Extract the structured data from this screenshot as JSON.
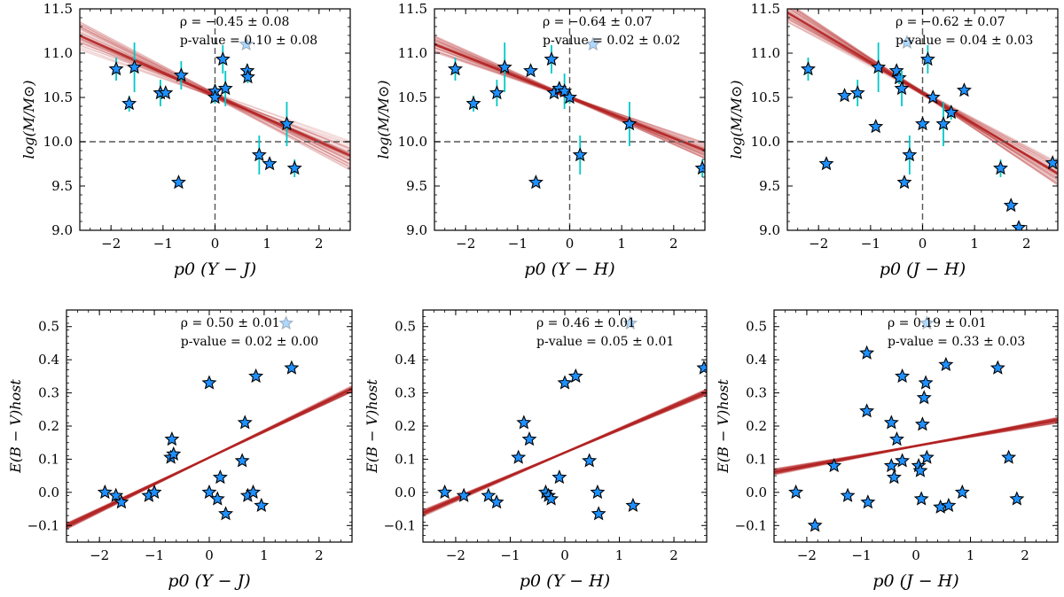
{
  "colors": {
    "fit": "#b22222",
    "star_fill": "#1e90ff",
    "star_edge": "#000000",
    "errorbar": "#00c8c8",
    "refline": "#555555"
  },
  "chart_data": [
    {
      "type": "scatter",
      "xlabel": "p0 (Y − J)",
      "ylabel": "log(M/M⊙)",
      "xlim": [
        -2.6,
        2.6
      ],
      "ylim": [
        9.0,
        11.5
      ],
      "xticks": [
        -2,
        -1,
        0,
        1,
        2
      ],
      "xtick_labels": [
        "−2",
        "−1",
        "0",
        "1",
        "2"
      ],
      "yticks": [
        9.0,
        9.5,
        10.0,
        10.5,
        11.0,
        11.5
      ],
      "ytick_labels": [
        "9.0",
        "9.5",
        "10.0",
        "10.5",
        "11.0",
        "11.5"
      ],
      "hline": 10.0,
      "vline": 0,
      "annotation_rho": "ρ = −0.45 ± 0.08",
      "annotation_p": "p-value = 0.10 ± 0.08",
      "fit": {
        "slope": -0.26,
        "intercept": 10.52,
        "spread": 0.1
      },
      "points": [
        {
          "x": -1.9,
          "y": 10.82,
          "err": 0.13
        },
        {
          "x": -1.65,
          "y": 10.43,
          "err": 0.09
        },
        {
          "x": -1.55,
          "y": 10.84,
          "err": 0.28
        },
        {
          "x": -1.05,
          "y": 10.55,
          "err": 0.15
        },
        {
          "x": -0.95,
          "y": 10.55,
          "err": 0
        },
        {
          "x": -0.7,
          "y": 9.54,
          "err": 0
        },
        {
          "x": -0.65,
          "y": 10.75,
          "err": 0.16
        },
        {
          "x": 0.0,
          "y": 10.57,
          "err": 0.08
        },
        {
          "x": 0.0,
          "y": 10.5,
          "err": 0.07
        },
        {
          "x": 0.15,
          "y": 10.93,
          "err": 0.16
        },
        {
          "x": 0.2,
          "y": 10.6,
          "err": 0.2
        },
        {
          "x": 0.62,
          "y": 10.8,
          "err": 0.08
        },
        {
          "x": 0.63,
          "y": 10.73,
          "err": 0.07
        },
        {
          "x": 0.85,
          "y": 9.85,
          "err": 0.22
        },
        {
          "x": 1.05,
          "y": 9.75,
          "err": 0
        },
        {
          "x": 1.38,
          "y": 10.2,
          "err": 0.25
        },
        {
          "x": 1.53,
          "y": 9.7,
          "err": 0.1
        },
        {
          "x": 0.6,
          "y": 11.1,
          "err": 0,
          "faded": true
        }
      ]
    },
    {
      "type": "scatter",
      "xlabel": "p0 (Y − H)",
      "ylabel": "log(M/M⊙)",
      "xlim": [
        -2.6,
        2.6
      ],
      "ylim": [
        9.0,
        11.5
      ],
      "xticks": [
        -2,
        -1,
        0,
        1,
        2
      ],
      "xtick_labels": [
        "−2",
        "−1",
        "0",
        "1",
        "2"
      ],
      "yticks": [
        9.0,
        9.5,
        10.0,
        10.5,
        11.0,
        11.5
      ],
      "ytick_labels": [
        "9.0",
        "9.5",
        "10.0",
        "10.5",
        "11.0",
        "11.5"
      ],
      "hline": 10.0,
      "vline": 0,
      "annotation_rho": "ρ = −0.64 ± 0.07",
      "annotation_p": "p-value = 0.02 ± 0.02",
      "fit": {
        "slope": -0.23,
        "intercept": 10.5,
        "spread": 0.06
      },
      "points": [
        {
          "x": -2.2,
          "y": 10.82,
          "err": 0.13
        },
        {
          "x": -1.85,
          "y": 10.43,
          "err": 0.09
        },
        {
          "x": -1.4,
          "y": 10.55,
          "err": 0.15
        },
        {
          "x": -1.25,
          "y": 10.84,
          "err": 0.28
        },
        {
          "x": -0.75,
          "y": 10.8,
          "err": 0
        },
        {
          "x": -0.65,
          "y": 9.54,
          "err": 0
        },
        {
          "x": -0.35,
          "y": 10.93,
          "err": 0.16
        },
        {
          "x": -0.3,
          "y": 10.55,
          "err": 0
        },
        {
          "x": -0.2,
          "y": 10.6,
          "err": 0
        },
        {
          "x": -0.1,
          "y": 10.57,
          "err": 0.2
        },
        {
          "x": 0.0,
          "y": 10.5,
          "err": 0.07
        },
        {
          "x": 0.2,
          "y": 9.85,
          "err": 0.22
        },
        {
          "x": 1.15,
          "y": 10.2,
          "err": 0.25
        },
        {
          "x": 2.55,
          "y": 9.7,
          "err": 0.1
        },
        {
          "x": 0.45,
          "y": 11.1,
          "err": 0,
          "faded": true
        }
      ]
    },
    {
      "type": "scatter",
      "xlabel": "p0 (J − H)",
      "ylabel": "log(M/M⊙)",
      "xlim": [
        -2.6,
        2.6
      ],
      "ylim": [
        9.0,
        11.5
      ],
      "xticks": [
        -2,
        -1,
        0,
        1,
        2
      ],
      "xtick_labels": [
        "−2",
        "−1",
        "0",
        "1",
        "2"
      ],
      "yticks": [
        9.0,
        9.5,
        10.0,
        10.5,
        11.0,
        11.5
      ],
      "ytick_labels": [
        "9.0",
        "9.5",
        "10.0",
        "10.5",
        "11.0",
        "11.5"
      ],
      "hline": 10.0,
      "vline": 0,
      "annotation_rho": "ρ = −0.62 ± 0.07",
      "annotation_p": "p-value = 0.04 ± 0.03",
      "fit": {
        "slope": -0.35,
        "intercept": 10.55,
        "spread": 0.08
      },
      "points": [
        {
          "x": -2.2,
          "y": 10.82,
          "err": 0.13
        },
        {
          "x": -1.85,
          "y": 9.75,
          "err": 0
        },
        {
          "x": -1.5,
          "y": 10.52,
          "err": 0
        },
        {
          "x": -1.25,
          "y": 10.55,
          "err": 0.15
        },
        {
          "x": -0.9,
          "y": 10.17,
          "err": 0
        },
        {
          "x": -0.85,
          "y": 10.84,
          "err": 0.28
        },
        {
          "x": -0.5,
          "y": 10.8,
          "err": 0
        },
        {
          "x": -0.45,
          "y": 10.72,
          "err": 0.07
        },
        {
          "x": -0.4,
          "y": 10.6,
          "err": 0.2
        },
        {
          "x": -0.35,
          "y": 9.54,
          "err": 0
        },
        {
          "x": -0.25,
          "y": 9.85,
          "err": 0.22
        },
        {
          "x": 0.0,
          "y": 10.2,
          "err": 0
        },
        {
          "x": 0.1,
          "y": 10.93,
          "err": 0.16
        },
        {
          "x": 0.2,
          "y": 10.5,
          "err": 0
        },
        {
          "x": 0.4,
          "y": 10.2,
          "err": 0.25
        },
        {
          "x": 0.55,
          "y": 10.33,
          "err": 0.08
        },
        {
          "x": 0.8,
          "y": 10.58,
          "err": 0
        },
        {
          "x": 1.5,
          "y": 9.7,
          "err": 0.1
        },
        {
          "x": 1.7,
          "y": 9.28,
          "err": 0
        },
        {
          "x": 1.85,
          "y": 9.03,
          "err": 0
        },
        {
          "x": 2.5,
          "y": 9.76,
          "err": 0
        },
        {
          "x": -0.3,
          "y": 11.12,
          "err": 0,
          "faded": true
        }
      ]
    },
    {
      "type": "scatter",
      "xlabel": "p0 (Y − J)",
      "ylabel": "E(B − V)host",
      "xlim": [
        -2.6,
        2.6
      ],
      "ylim": [
        -0.15,
        0.55
      ],
      "xticks": [
        -2,
        -1,
        0,
        1,
        2
      ],
      "xtick_labels": [
        "−2",
        "−1",
        "0",
        "1",
        "2"
      ],
      "yticks": [
        -0.1,
        0.0,
        0.1,
        0.2,
        0.3,
        0.4,
        0.5
      ],
      "ytick_labels": [
        "−0.1",
        "0.0",
        "0.1",
        "0.2",
        "0.3",
        "0.4",
        "0.5"
      ],
      "annotation_rho": "ρ = 0.50 ± 0.01",
      "annotation_p": "p-value = 0.02 ± 0.00",
      "fit": {
        "slope": 0.08,
        "intercept": 0.105,
        "spread": 0.006
      },
      "points": [
        {
          "x": -1.9,
          "y": 0.0
        },
        {
          "x": -1.7,
          "y": -0.01
        },
        {
          "x": -1.6,
          "y": -0.03
        },
        {
          "x": -1.1,
          "y": -0.01
        },
        {
          "x": -1.0,
          "y": 0.0
        },
        {
          "x": -0.7,
          "y": 0.105
        },
        {
          "x": -0.68,
          "y": 0.16
        },
        {
          "x": -0.65,
          "y": 0.115
        },
        {
          "x": 0.0,
          "y": 0.33
        },
        {
          "x": 0.0,
          "y": 0.0
        },
        {
          "x": 0.15,
          "y": -0.02
        },
        {
          "x": 0.2,
          "y": 0.045
        },
        {
          "x": 0.3,
          "y": -0.065
        },
        {
          "x": 0.6,
          "y": 0.095
        },
        {
          "x": 0.65,
          "y": 0.21
        },
        {
          "x": 0.7,
          "y": -0.01
        },
        {
          "x": 0.8,
          "y": 0.0
        },
        {
          "x": 0.85,
          "y": 0.35
        },
        {
          "x": 0.95,
          "y": -0.04
        },
        {
          "x": 1.5,
          "y": 0.375
        },
        {
          "x": 1.4,
          "y": 0.51,
          "faded": true
        }
      ]
    },
    {
      "type": "scatter",
      "xlabel": "p0 (Y − H)",
      "ylabel": "E(B − V)host",
      "xlim": [
        -2.6,
        2.6
      ],
      "ylim": [
        -0.15,
        0.55
      ],
      "xticks": [
        -2,
        -1,
        0,
        1,
        2
      ],
      "xtick_labels": [
        "−2",
        "−1",
        "0",
        "1",
        "2"
      ],
      "yticks": [
        -0.1,
        0.0,
        0.1,
        0.2,
        0.3,
        0.4,
        0.5
      ],
      "ytick_labels": [
        "−0.1",
        "0.0",
        "0.1",
        "0.2",
        "0.3",
        "0.4",
        "0.5"
      ],
      "annotation_rho": "ρ = 0.46 ± 0.01",
      "annotation_p": "p-value = 0.05 ± 0.01",
      "fit": {
        "slope": 0.07,
        "intercept": 0.12,
        "spread": 0.006
      },
      "points": [
        {
          "x": -2.2,
          "y": 0.0
        },
        {
          "x": -1.85,
          "y": -0.01
        },
        {
          "x": -1.4,
          "y": -0.01
        },
        {
          "x": -1.25,
          "y": -0.03
        },
        {
          "x": -0.85,
          "y": 0.105
        },
        {
          "x": -0.75,
          "y": 0.21
        },
        {
          "x": -0.65,
          "y": 0.16
        },
        {
          "x": -0.35,
          "y": 0.0
        },
        {
          "x": -0.3,
          "y": -0.01
        },
        {
          "x": -0.25,
          "y": -0.02
        },
        {
          "x": -0.1,
          "y": 0.045
        },
        {
          "x": 0.0,
          "y": 0.33
        },
        {
          "x": 0.2,
          "y": 0.35
        },
        {
          "x": 0.45,
          "y": 0.095
        },
        {
          "x": 0.6,
          "y": 0.0
        },
        {
          "x": 0.62,
          "y": -0.065
        },
        {
          "x": 1.25,
          "y": -0.04
        },
        {
          "x": 2.55,
          "y": 0.375
        },
        {
          "x": 1.2,
          "y": 0.51,
          "faded": true
        }
      ]
    },
    {
      "type": "scatter",
      "xlabel": "p0 (J − H)",
      "ylabel": "E(B − V)host",
      "xlim": [
        -2.6,
        2.6
      ],
      "ylim": [
        -0.15,
        0.55
      ],
      "xticks": [
        -2,
        -1,
        0,
        1,
        2
      ],
      "xtick_labels": [
        "−2",
        "−1",
        "0",
        "1",
        "2"
      ],
      "yticks": [
        -0.1,
        0.0,
        0.1,
        0.2,
        0.3,
        0.4,
        0.5
      ],
      "ytick_labels": [
        "−0.1",
        "0.0",
        "0.1",
        "0.2",
        "0.3",
        "0.4",
        "0.5"
      ],
      "annotation_rho": "ρ = 0.19 ± 0.01",
      "annotation_p": "p-value = 0.33 ± 0.03",
      "fit": {
        "slope": 0.03,
        "intercept": 0.14,
        "spread": 0.006
      },
      "points": [
        {
          "x": -2.2,
          "y": 0.0
        },
        {
          "x": -1.85,
          "y": -0.1
        },
        {
          "x": -1.5,
          "y": 0.08
        },
        {
          "x": -1.25,
          "y": -0.01
        },
        {
          "x": -0.9,
          "y": 0.42
        },
        {
          "x": -0.9,
          "y": 0.245
        },
        {
          "x": -0.88,
          "y": -0.03
        },
        {
          "x": -0.45,
          "y": 0.21
        },
        {
          "x": -0.45,
          "y": 0.08
        },
        {
          "x": -0.4,
          "y": 0.045
        },
        {
          "x": -0.35,
          "y": 0.16
        },
        {
          "x": -0.25,
          "y": 0.35
        },
        {
          "x": -0.25,
          "y": 0.095
        },
        {
          "x": 0.05,
          "y": 0.08
        },
        {
          "x": 0.08,
          "y": 0.065
        },
        {
          "x": 0.1,
          "y": -0.02
        },
        {
          "x": 0.12,
          "y": 0.205
        },
        {
          "x": 0.15,
          "y": 0.285
        },
        {
          "x": 0.18,
          "y": 0.33
        },
        {
          "x": 0.2,
          "y": 0.105
        },
        {
          "x": 0.45,
          "y": -0.045
        },
        {
          "x": 0.55,
          "y": 0.385
        },
        {
          "x": 0.6,
          "y": -0.04
        },
        {
          "x": 0.85,
          "y": 0.0
        },
        {
          "x": 1.5,
          "y": 0.375
        },
        {
          "x": 1.7,
          "y": 0.105
        },
        {
          "x": 1.85,
          "y": -0.02
        },
        {
          "x": 0.2,
          "y": 0.51,
          "faded": true
        }
      ]
    }
  ]
}
